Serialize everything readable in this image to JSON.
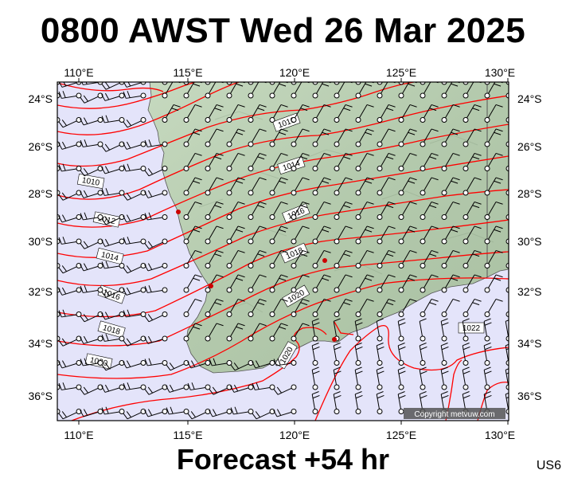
{
  "title": "0800 AWST Wed 26 Mar 2025",
  "forecast": "Forecast +54 hr",
  "region_code": "US6",
  "copyright": "Copyright metvuw.com",
  "longitude_labels": [
    "110°E",
    "115°E",
    "120°E",
    "125°E",
    "130°E"
  ],
  "latitude_labels": [
    "24°S",
    "26°S",
    "28°S",
    "30°S",
    "32°S",
    "34°S",
    "36°S"
  ],
  "isobar_labels": [
    "1010",
    "1010",
    "1012",
    "1014",
    "1014",
    "1016",
    "1016",
    "1018",
    "1018",
    "1020",
    "1020",
    "1020",
    "1022"
  ],
  "colors": {
    "ocean": "#e4e4fa",
    "land": "#b7cdb0",
    "isobar": "#ff0000",
    "wind_barb": "#000000",
    "city_marker": "#cc0000"
  }
}
